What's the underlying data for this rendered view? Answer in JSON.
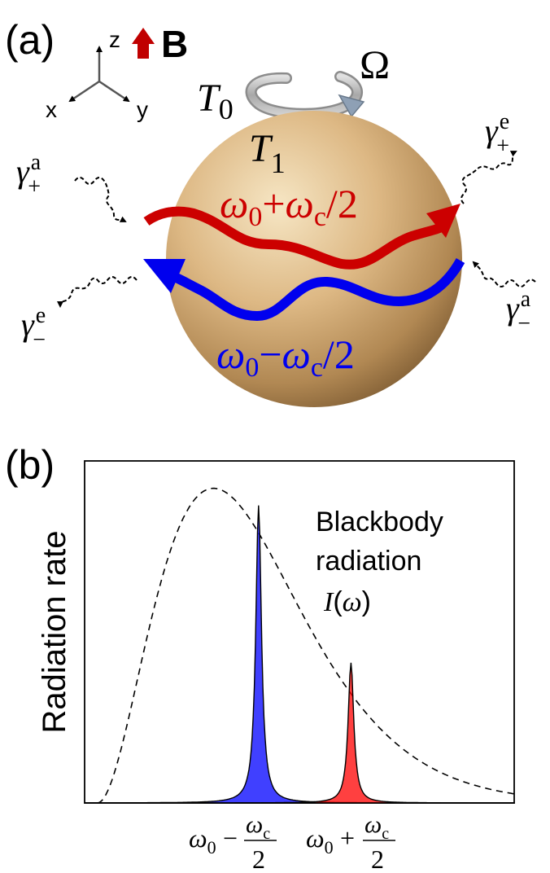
{
  "panel_a": {
    "label": "(a)",
    "axes": {
      "z": "z",
      "x": "x",
      "y": "y"
    },
    "field_label": "B",
    "rotation_label": "Ω",
    "T0": {
      "base": "T",
      "sub": "0"
    },
    "T1": {
      "base": "T",
      "sub": "1"
    },
    "red_mode": {
      "w": "ω",
      "sub0": "0",
      "plus": "+",
      "wc": "ω",
      "subc": "c",
      "div": "/2"
    },
    "blue_mode": {
      "w": "ω",
      "sub0": "0",
      "minus": "−",
      "wc": "ω",
      "subc": "c",
      "div": "/2"
    },
    "gamma_plus_a": {
      "g": "γ",
      "sup": "a",
      "sub": "+"
    },
    "gamma_plus_e": {
      "g": "γ",
      "sup": "e",
      "sub": "+"
    },
    "gamma_minus_e": {
      "g": "γ",
      "sup": "e",
      "sub": "−"
    },
    "gamma_minus_a": {
      "g": "γ",
      "sup": "a",
      "sub": "−"
    },
    "colors": {
      "red": "#cc0000",
      "blue": "#0000ee",
      "sphere_light": "#f3dcb0",
      "sphere_mid": "#d9b27a",
      "sphere_dark": "#8f6a3c",
      "ring": "#b5b5b5",
      "ring_tip": "#8ea0b5",
      "field_arrow": "#c00000"
    }
  },
  "panel_b": {
    "label": "(b)",
    "ylabel": "Radiation rate",
    "legend_line1": "Blackbody",
    "legend_line2": "radiation",
    "legend_func": {
      "I": "I",
      "open": "(",
      "w": "ω",
      "close": ")"
    },
    "tick_minus": {
      "w": "ω",
      "sub": "0",
      "op": "−",
      "num": "ω",
      "numsub": "c",
      "den": "2"
    },
    "tick_plus": {
      "w": "ω",
      "sub": "0",
      "op": "+",
      "num": "ω",
      "numsub": "c",
      "den": "2"
    }
  },
  "chart_data": {
    "type": "area",
    "x_range": [
      0,
      1
    ],
    "y_range": [
      0,
      1
    ],
    "grid": false,
    "x_ticks": [
      "ω0 − ωc/2",
      "ω0 + ωc/2"
    ],
    "ylabel": "Radiation rate",
    "series": [
      {
        "name": "Blackbody radiation I(ω)",
        "style": "dashed",
        "peak_x": 0.3,
        "peak_y": 0.92,
        "start_x": 0.03,
        "end_x": 1.0,
        "end_y": 0.07
      },
      {
        "style": "filled",
        "color": "#0000ff",
        "center_x": 0.405,
        "peak_y": 0.87
      },
      {
        "style": "filled",
        "color": "#ff0000",
        "center_x": 0.62,
        "peak_y": 0.41
      }
    ]
  }
}
